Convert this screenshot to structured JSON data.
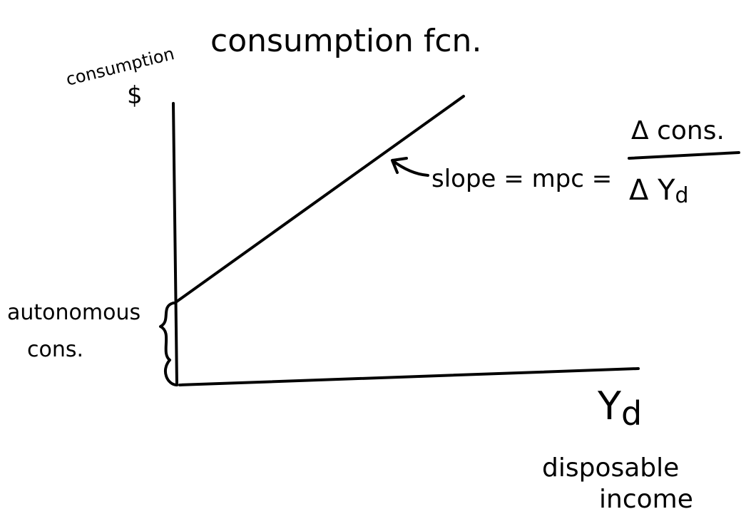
{
  "title": "consumption fcn.",
  "y_axis": {
    "label": "consumption",
    "unit": "$"
  },
  "x_axis": {
    "symbol": "Y",
    "subscript": "d",
    "label_line1": "disposable",
    "label_line2": "income"
  },
  "intercept_label": {
    "line1": "autonomous",
    "line2": "cons."
  },
  "slope_note": {
    "text": "slope = mpc =",
    "numerator": "Δ cons.",
    "denominator": "Δ Y",
    "denominator_subscript": "d"
  }
}
